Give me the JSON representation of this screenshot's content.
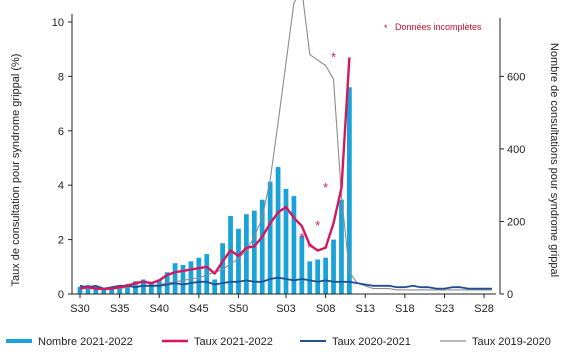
{
  "chart_data": {
    "type": "bar",
    "annotation": "Données incomplètes",
    "annotation_marker": "*",
    "ylabel_left": "Taux de consultation pour syndrome grippal (%)",
    "ylabel_right": "Nombre de consultations pour syndrome grippal",
    "ylim_left": [
      0,
      10
    ],
    "ylim_right": [
      0,
      750
    ],
    "yticks_left": [
      0,
      2,
      4,
      6,
      8,
      10
    ],
    "yticks_right": [
      0,
      200,
      400,
      600
    ],
    "grid": false,
    "legend_position": "bottom",
    "x": [
      "S30",
      "S31",
      "S32",
      "S33",
      "S34",
      "S35",
      "S36",
      "S37",
      "S38",
      "S39",
      "S40",
      "S41",
      "S42",
      "S43",
      "S44",
      "S45",
      "S46",
      "S47",
      "S48",
      "S49",
      "S50",
      "S51",
      "S52",
      "S53",
      "S01",
      "S02",
      "S03",
      "S04",
      "S05",
      "S06",
      "S07",
      "S08",
      "S09",
      "S10",
      "S11",
      "S12",
      "S13",
      "S14",
      "S15",
      "S16",
      "S17",
      "S18",
      "S19",
      "S20",
      "S21",
      "S22",
      "S23",
      "S24",
      "S25",
      "S26",
      "S27",
      "S28",
      "S29"
    ],
    "x_tick_labels": [
      "S30",
      "S35",
      "S40",
      "S45",
      "S50",
      "S03",
      "S08",
      "S13",
      "S18",
      "S23",
      "S28"
    ],
    "colors": {
      "bars": "#1aa3d9",
      "taux_2021_2022": "#d6175f",
      "taux_2020_2021": "#1f4e96",
      "taux_2019_2020": "#8c8c8c",
      "marker": "#d6175f",
      "axis": "#222222"
    },
    "series": [
      {
        "name": "Nombre 2021-2022",
        "kind": "bar",
        "axis": "right",
        "values": [
          20,
          25,
          20,
          15,
          15,
          22,
          28,
          35,
          40,
          30,
          40,
          60,
          85,
          80,
          90,
          100,
          110,
          40,
          140,
          215,
          180,
          220,
          230,
          260,
          310,
          350,
          290,
          270,
          160,
          90,
          95,
          100,
          150,
          260,
          570,
          null,
          null,
          null,
          null,
          null,
          null,
          null,
          null,
          null,
          null,
          null,
          null,
          null,
          null,
          null,
          null,
          null,
          null
        ]
      },
      {
        "name": "Taux 2021-2022",
        "kind": "line",
        "axis": "left",
        "values": [
          0.2,
          0.25,
          0.2,
          0.18,
          0.2,
          0.25,
          0.3,
          0.4,
          0.45,
          0.4,
          0.5,
          0.7,
          0.8,
          0.85,
          0.9,
          0.95,
          1.0,
          0.75,
          1.2,
          1.6,
          1.4,
          1.7,
          1.75,
          2.1,
          2.6,
          3.0,
          3.2,
          2.8,
          2.5,
          1.8,
          1.6,
          1.7,
          2.6,
          3.9,
          8.7,
          null,
          null,
          null,
          null,
          null,
          null,
          null,
          null,
          null,
          null,
          null,
          null,
          null,
          null,
          null,
          null,
          null,
          null
        ]
      },
      {
        "name": "Taux 2020-2021",
        "kind": "line",
        "axis": "left",
        "values": [
          0.3,
          0.25,
          0.3,
          0.2,
          0.25,
          0.3,
          0.3,
          0.25,
          0.3,
          0.3,
          0.3,
          0.35,
          0.4,
          0.35,
          0.4,
          0.45,
          0.45,
          0.35,
          0.4,
          0.45,
          0.45,
          0.5,
          0.45,
          0.45,
          0.55,
          0.6,
          0.55,
          0.5,
          0.55,
          0.5,
          0.45,
          0.5,
          0.45,
          0.45,
          0.45,
          0.4,
          0.35,
          0.3,
          0.3,
          0.3,
          0.25,
          0.25,
          0.3,
          0.25,
          0.25,
          0.2,
          0.2,
          0.25,
          0.25,
          0.2,
          0.2,
          0.2,
          0.2
        ]
      },
      {
        "name": "Taux 2019-2020",
        "kind": "line",
        "axis": "left",
        "values": [
          0.25,
          0.2,
          0.2,
          0.2,
          0.2,
          0.2,
          0.25,
          0.3,
          0.3,
          0.3,
          0.35,
          0.4,
          0.45,
          0.5,
          0.55,
          0.6,
          0.7,
          0.8,
          0.9,
          1.1,
          1.3,
          1.6,
          2.1,
          2.8,
          4.2,
          6.3,
          8.5,
          10.7,
          11.2,
          8.8,
          8.6,
          8.4,
          7.9,
          3.6,
          0.8,
          0.4,
          0.3,
          0.2,
          0.2,
          0.2,
          0.15,
          0.15,
          0.15,
          0.15,
          0.15,
          0.15,
          0.15,
          0.15,
          0.15,
          0.15,
          0.15,
          0.15,
          0.15
        ]
      }
    ],
    "incomplete_markers": [
      {
        "x": "S05",
        "value": 2.05
      },
      {
        "x": "S06",
        "value": 1.7
      },
      {
        "x": "S07",
        "value": 2.5
      },
      {
        "x": "S08",
        "value": 3.9
      },
      {
        "x": "S09",
        "value": 8.7
      }
    ]
  }
}
